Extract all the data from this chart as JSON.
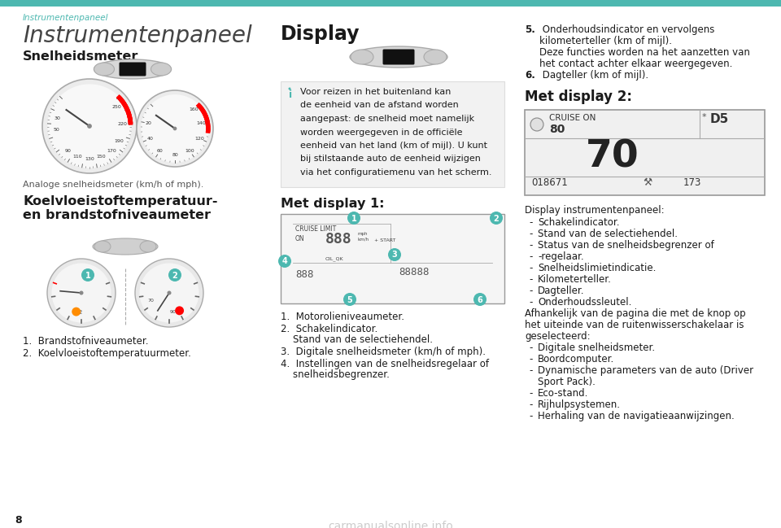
{
  "bg_color": "#ffffff",
  "teal_color": "#4db8b0",
  "black": "#1a1a1a",
  "gray": "#555555",
  "lightgray": "#f0f0f0",
  "header_text": "Instrumentenpaneel",
  "title_main": "Instrumentenpaneel",
  "section1_title": "Snelheidsmeter",
  "section1_caption": "Analoge snelheidsmeter (km/h of mph).",
  "section2_title_line1": "Koelvloeistoftemperatuur-",
  "section2_title_line2": "en brandstofniveaumeter",
  "section2_item1": "1.  Brandstofniveaumeter.",
  "section2_item2": "2.  Koelvloeistoftemperatuurmeter.",
  "display_title": "Display",
  "info_text_line1": "Voor reizen in het buitenland kan",
  "info_text_line2": "de eenheid van de afstand worden",
  "info_text_line3": "aangepast: de snelheid moet namelijk",
  "info_text_line4": "worden weergegeven in de officiële",
  "info_text_line5": "eenheid van het land (km of mijl). U kunt",
  "info_text_line6": "bij stilstaande auto de eenheid wijzigen",
  "info_text_line7": "via het configuratiemenu van het scherm.",
  "display1_title": "Met display 1:",
  "d1_item1": "1.  Motorolieniveaumeter.",
  "d1_item2a": "2.  Schakelindicator.",
  "d1_item2b": "    Stand van de selectiehendel.",
  "d1_item3": "3.  Digitale snelheidsmeter (km/h of mph).",
  "d1_item4a": "4.  Instellingen van de snelheidsregelaar of",
  "d1_item4b": "    snelheidsbegrenzer.",
  "d1_item5a": "5.  Onderhoudsindicator en vervolgens",
  "d1_item5b": "    kilometerteller (km of mijl).",
  "d1_item5c": "    Deze functies worden na het aanzetten van",
  "d1_item5d": "    het contact achter elkaar weergegeven.",
  "d1_item6": "6.  Dagteller (km of mijl).",
  "display2_title": "Met display 2:",
  "disp2_info_title": "Display instrumentenpaneel:",
  "disp2_items": [
    "Schakelindicator.",
    "Stand van de selectiehendel.",
    "Status van de snelheidsbegrenzer of",
    "-regelaar.",
    "Snelheidslimietindicatie.",
    "Kilometerteller.",
    "Dagteller.",
    "Onderhoudssleutel."
  ],
  "disp2_para": "Afhankelijk van de pagina die met de knop op",
  "disp2_para2": "het uiteinde van de ruitenwisserschakelaar is",
  "disp2_para3": "geselecteerd:",
  "disp2_extra": [
    "Digitale snelheidsmeter.",
    "Boordcomputer.",
    "Dynamische parameters van de auto (Driver",
    "Sport Pack).",
    "Eco-stand.",
    "Rijhulpsystemen.",
    "Herhaling van de navigatieaanwijzingen."
  ],
  "page_number": "8",
  "watermark": "carmanualsonline.info"
}
